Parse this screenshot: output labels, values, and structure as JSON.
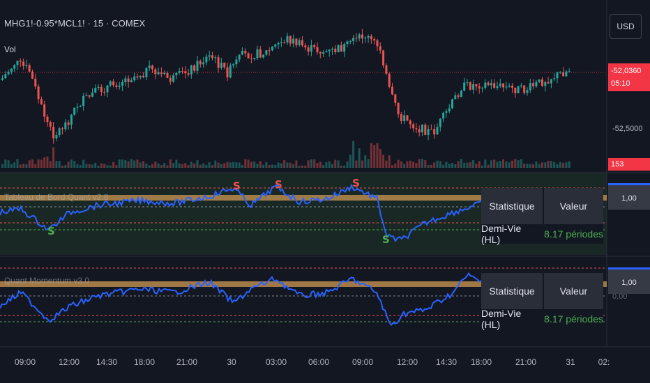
{
  "header": {
    "symbol_title": "MHG1!-0.95*MCL1! · 15 · COMEX",
    "volume_label": "Vol"
  },
  "currency": "USD",
  "price_axis": {
    "last_price": "-52,0360",
    "countdown": "05:10",
    "level": "-52,5000"
  },
  "volume_badge": "153",
  "indicator1": {
    "title": "Tableau de Bord Quant v2.8",
    "value_badge": "1,00"
  },
  "indicator2": {
    "title": "Quant Momentum v3.0",
    "value_badge": "1,00",
    "axis_tick": "0,00"
  },
  "stats_table": {
    "header_stat": "Statistique",
    "header_value": "Valeur",
    "row_label": "Demi-Vie (HL)",
    "row_value": "8.17 périodes"
  },
  "signals": [
    "S",
    "S",
    "S",
    "S",
    "S"
  ],
  "time_axis": [
    "09:00",
    "12:00",
    "14:30",
    "18:00",
    "21:00",
    "30",
    "03:00",
    "06:00",
    "09:00",
    "12:00",
    "14:30",
    "18:00",
    "21:00",
    "31",
    "02:"
  ],
  "colors": {
    "background": "#131722",
    "up": "#26a69a",
    "down": "#ef5350",
    "line": "#2962ff",
    "band": "#b8894c",
    "last_price": "#f23645"
  }
}
